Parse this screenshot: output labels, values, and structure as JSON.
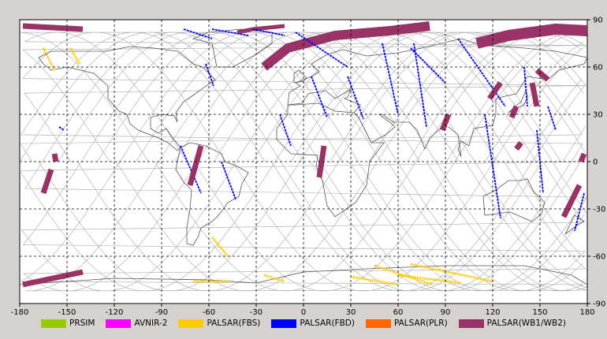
{
  "colors": {
    "background": "#d6d3ce",
    "plot_background": "#ffffff",
    "land": "#555555",
    "orbit": "#b4b4b4",
    "grid": "#000000"
  },
  "chart_data": {
    "type": "map",
    "projection": "equirectangular",
    "xlim": [
      -180,
      180
    ],
    "ylim": [
      -90,
      90
    ],
    "grid": true,
    "grid_style": "dashed",
    "x_ticks": [
      "-180",
      "-150",
      "-120",
      "-90",
      "-60",
      "-30",
      "0",
      "30",
      "60",
      "90",
      "120",
      "150",
      "180"
    ],
    "y_ticks": [
      "90",
      "60",
      "30",
      "0",
      "-30",
      "-60",
      "-90"
    ],
    "legend_position": "bottom",
    "series": [
      {
        "name": "PRSIM",
        "color": "#99cc00",
        "swaths": []
      },
      {
        "name": "AVNIR-2",
        "color": "#ff00ff",
        "swaths": []
      },
      {
        "name": "PALSAR(FBS)",
        "color": "#ffcc00",
        "width": 1.4,
        "swaths": [
          [
            [
              -165,
              72
            ],
            [
              -158,
              58
            ]
          ],
          [
            [
              -148,
              72
            ],
            [
              -142,
              62
            ]
          ],
          [
            [
              -58,
              -48
            ],
            [
              -48,
              -60
            ]
          ],
          [
            [
              -70,
              -76
            ],
            [
              -48,
              -76
            ]
          ],
          [
            [
              -25,
              -72
            ],
            [
              -12,
              -76
            ]
          ],
          [
            [
              30,
              -73
            ],
            [
              60,
              -78
            ]
          ],
          [
            [
              45,
              -66
            ],
            [
              82,
              -78
            ]
          ],
          [
            [
              68,
              -65
            ],
            [
              120,
              -76
            ]
          ],
          [
            [
              60,
              -72
            ],
            [
              100,
              -77
            ]
          ]
        ]
      },
      {
        "name": "PALSAR(FBD)",
        "color": "#0000ff",
        "width": 0.9,
        "swaths": [
          [
            [
              -76,
              84
            ],
            [
              -58,
              78
            ]
          ],
          [
            [
              -58,
              84
            ],
            [
              -35,
              80
            ]
          ],
          [
            [
              -32,
              84
            ],
            [
              -12,
              80
            ]
          ],
          [
            [
              -62,
              62
            ],
            [
              -57,
              48
            ]
          ],
          [
            [
              -78,
              10
            ],
            [
              -65,
              -20
            ]
          ],
          [
            [
              -52,
              0
            ],
            [
              -43,
              -24
            ]
          ],
          [
            [
              -15,
              30
            ],
            [
              -8,
              10
            ]
          ],
          [
            [
              5,
              54
            ],
            [
              15,
              28
            ]
          ],
          [
            [
              -5,
              82
            ],
            [
              28,
              60
            ]
          ],
          [
            [
              28,
              54
            ],
            [
              38,
              27
            ]
          ],
          [
            [
              50,
              75
            ],
            [
              60,
              30
            ]
          ],
          [
            [
              70,
              75
            ],
            [
              78,
              22
            ]
          ],
          [
            [
              68,
              72
            ],
            [
              90,
              50
            ]
          ],
          [
            [
              98,
              78
            ],
            [
              128,
              35
            ]
          ],
          [
            [
              115,
              30
            ],
            [
              125,
              -36
            ]
          ],
          [
            [
              140,
              60
            ],
            [
              142,
              35
            ]
          ],
          [
            [
              148,
              20
            ],
            [
              152,
              -20
            ]
          ],
          [
            [
              155,
              35
            ],
            [
              160,
              20
            ]
          ],
          [
            [
              178,
              -20
            ],
            [
              172,
              -44
            ]
          ],
          [
            [
              -155,
              22
            ],
            [
              -152,
              20
            ]
          ]
        ]
      },
      {
        "name": "PALSAR(PLR)",
        "color": "#ff6600",
        "swaths": []
      },
      {
        "name": "PALSAR(WB1/WB2)",
        "color": "#993366",
        "width": 3.5,
        "swaths": [
          [
            [
              -178,
              86
            ],
            [
              -140,
              84
            ]
          ],
          [
            [
              -178,
              -78
            ],
            [
              -140,
              -70
            ]
          ],
          [
            [
              -160,
              -5
            ],
            [
              -165,
              -20
            ]
          ],
          [
            [
              -158,
              5
            ],
            [
              -157,
              0
            ]
          ],
          [
            [
              -65,
              10
            ],
            [
              -72,
              -15
            ]
          ],
          [
            [
              13,
              10
            ],
            [
              10,
              -10
            ]
          ],
          [
            [
              92,
              30
            ],
            [
              88,
              20
            ]
          ],
          [
            [
              125,
              50
            ],
            [
              118,
              40
            ]
          ],
          [
            [
              135,
              35
            ],
            [
              132,
              28
            ]
          ],
          [
            [
              148,
              35
            ],
            [
              145,
              50
            ]
          ],
          [
            [
              148,
              58
            ],
            [
              155,
              52
            ]
          ],
          [
            [
              175,
              -15
            ],
            [
              165,
              -35
            ]
          ],
          [
            [
              178,
              5
            ],
            [
              176,
              0
            ]
          ],
          [
            [
              138,
              12
            ],
            [
              135,
              8
            ]
          ]
        ]
      }
    ],
    "wide_swaths": [
      {
        "color": "#993366",
        "points": [
          [
            -25,
            60
          ],
          [
            -10,
            72
          ],
          [
            20,
            80
          ],
          [
            55,
            83
          ],
          [
            80,
            86
          ]
        ],
        "width": 12
      },
      {
        "color": "#993366",
        "points": [
          [
            110,
            75
          ],
          [
            130,
            80
          ],
          [
            160,
            84
          ],
          [
            180,
            83
          ]
        ],
        "width": 14
      },
      {
        "color": "#993366",
        "points": [
          [
            -42,
            82
          ],
          [
            -32,
            84
          ],
          [
            -12,
            86
          ]
        ],
        "width": 5
      }
    ]
  }
}
